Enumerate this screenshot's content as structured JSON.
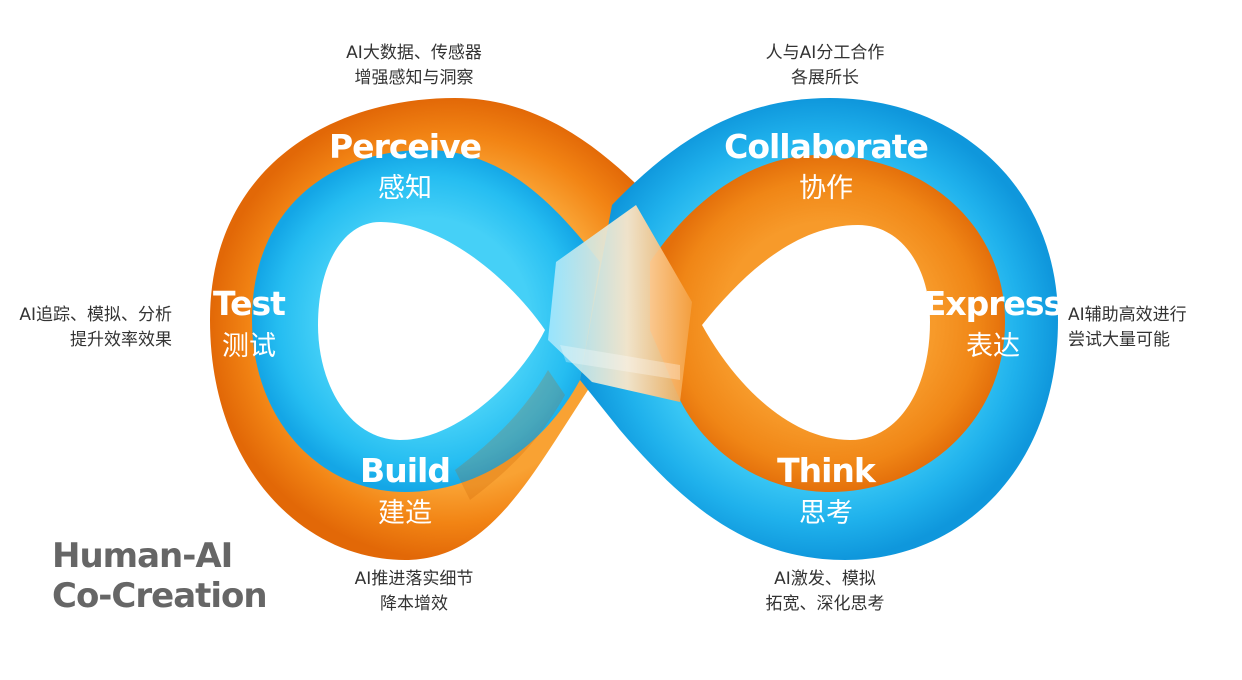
{
  "colors": {
    "orange": "#ef7a10",
    "orange_light": "#f79a2a",
    "blue": "#1fb1ec",
    "blue_light": "#3fcaf5",
    "annotation_text": "#333333",
    "brand_text": "#666666"
  },
  "stages": {
    "perceive": {
      "en": "Perceive",
      "zh": "感知"
    },
    "collaborate": {
      "en": "Collaborate",
      "zh": "协作"
    },
    "test": {
      "en": "Test",
      "zh": "测试"
    },
    "express": {
      "en": "Express",
      "zh": "表达"
    },
    "build": {
      "en": "Build",
      "zh": "建造"
    },
    "think": {
      "en": "Think",
      "zh": "思考"
    }
  },
  "annotations": {
    "perceive": [
      "AI大数据、传感器",
      "增强感知与洞察"
    ],
    "collaborate": [
      "人与AI分工合作",
      "各展所长"
    ],
    "test": [
      "AI追踪、模拟、分析",
      "提升效率效果"
    ],
    "express": [
      "AI辅助高效进行",
      "尝试大量可能"
    ],
    "build": [
      "AI推进落实细节",
      "降本增效"
    ],
    "think": [
      "AI激发、模拟",
      "拓宽、深化思考"
    ]
  },
  "brand": [
    "Human-AI",
    "Co-Creation"
  ]
}
